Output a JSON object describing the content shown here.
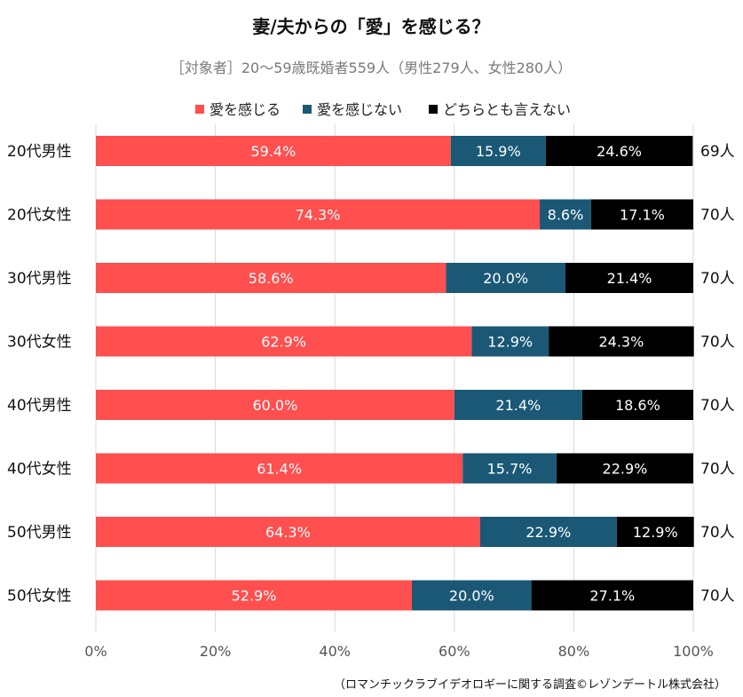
{
  "chart_data": {
    "type": "bar",
    "orientation": "horizontal",
    "stacked": true,
    "title": "妻/夫からの「愛」を感じる？",
    "subtitle": "［対象者］20～59歳既婚者559人（男性279人、女性280人）",
    "source": "（ロマンチックラブイデオロギーに関する調査©レゾンデートル株式会社）",
    "categories": [
      "20代男性",
      "20代女性",
      "30代男性",
      "30代女性",
      "40代男性",
      "40代女性",
      "50代男性",
      "50代女性"
    ],
    "counts": [
      "69人",
      "70人",
      "70人",
      "70人",
      "70人",
      "70人",
      "70人",
      "70人"
    ],
    "series": [
      {
        "name": "愛を感じる",
        "color": "#ff4f4f",
        "values": [
          59.4,
          74.3,
          58.6,
          62.9,
          60.0,
          61.4,
          64.3,
          52.9
        ]
      },
      {
        "name": "愛を感じない",
        "color": "#1a5876",
        "values": [
          15.9,
          8.6,
          20.0,
          12.9,
          21.4,
          15.7,
          22.9,
          20.0
        ]
      },
      {
        "name": "どちらとも言えない",
        "color": "#000000",
        "values": [
          24.6,
          17.1,
          21.4,
          24.3,
          18.6,
          22.9,
          12.9,
          27.1
        ]
      }
    ],
    "xticks": [
      "0%",
      "20%",
      "40%",
      "60%",
      "80%",
      "100%"
    ],
    "xlim": [
      0,
      100
    ],
    "value_suffix": "%",
    "grid": true,
    "legend": "top"
  }
}
